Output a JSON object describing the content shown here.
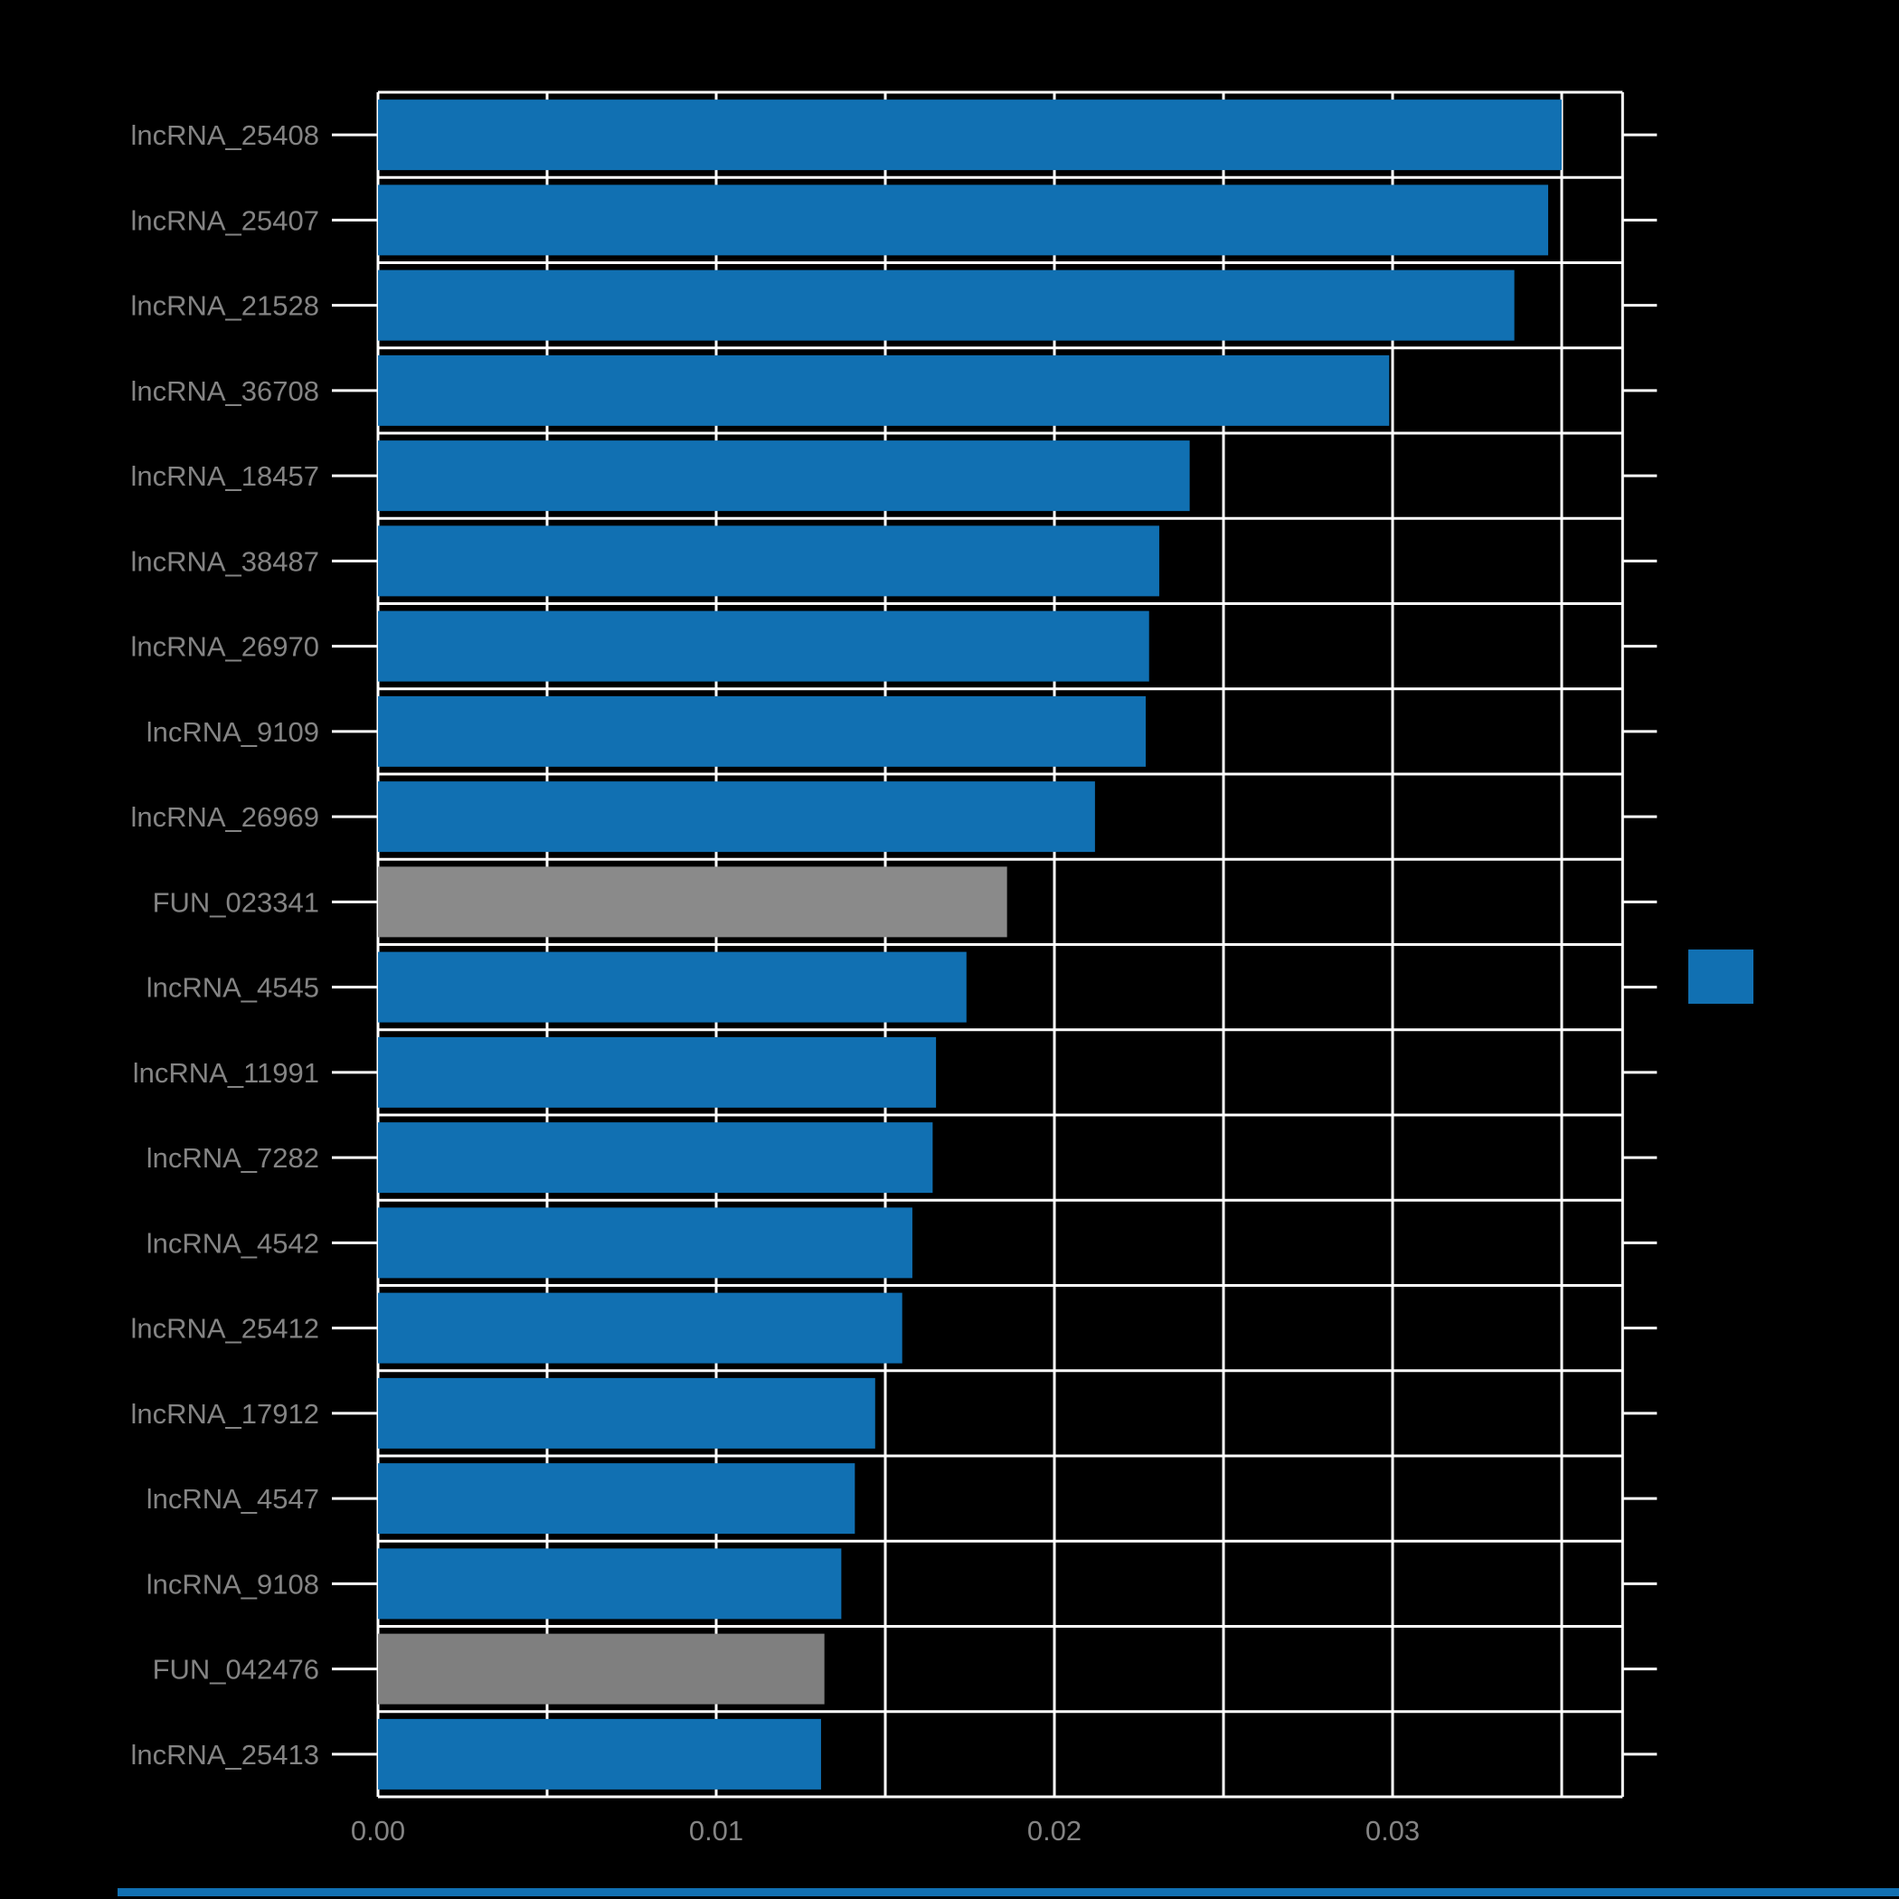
{
  "chart_data": {
    "type": "bar",
    "orientation": "horizontal",
    "title": "",
    "xlabel": "",
    "ylabel": "",
    "categories": [
      "lncRNA_25408",
      "lncRNA_25407",
      "lncRNA_21528",
      "lncRNA_36708",
      "lncRNA_18457",
      "lncRNA_38487",
      "lncRNA_26970",
      "lncRNA_9109",
      "lncRNA_26969",
      "FUN_023341",
      "lncRNA_4545",
      "lncRNA_11991",
      "lncRNA_7282",
      "lncRNA_4542",
      "lncRNA_25412",
      "lncRNA_17912",
      "lncRNA_4547",
      "lncRNA_9108",
      "FUN_042476",
      "lncRNA_25413"
    ],
    "values": [
      0.035,
      0.0346,
      0.0336,
      0.0299,
      0.024,
      0.0231,
      0.0228,
      0.0227,
      0.0212,
      0.0186,
      0.0174,
      0.0165,
      0.0164,
      0.0158,
      0.0155,
      0.0147,
      0.0141,
      0.0137,
      0.0132,
      0.0131
    ],
    "bar_colors": [
      "#1170b2",
      "#1170b2",
      "#1170b2",
      "#1170b2",
      "#1170b2",
      "#1170b2",
      "#1170b2",
      "#1170b2",
      "#1170b2",
      "#8a8a8a",
      "#1170b2",
      "#1170b2",
      "#1170b2",
      "#1170b2",
      "#1170b2",
      "#1170b2",
      "#1170b2",
      "#1170b2",
      "#7f7f7f",
      "#1170b2"
    ],
    "x_tick_labels": [
      "0.00",
      "0.01",
      "0.02",
      "0.03"
    ],
    "x_tick_values": [
      0.0,
      0.01,
      0.02,
      0.03
    ],
    "x_minor_step": 0.005,
    "xlim": [
      0,
      0.0368
    ],
    "grid": true,
    "legend_position": "right"
  },
  "colors": {
    "background": "#000000",
    "grid": "#ffffff",
    "label_text": "#848484",
    "bar_blue": "#1170b2",
    "bar_gray": "#8a8a8a"
  },
  "legend": {
    "swatch_color": "#1170b2"
  },
  "bottom_strip": {
    "color": "#1170b2"
  }
}
